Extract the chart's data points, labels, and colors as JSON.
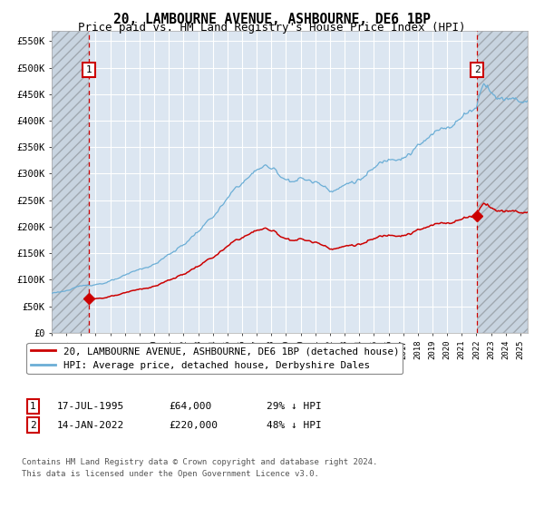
{
  "title": "20, LAMBOURNE AVENUE, ASHBOURNE, DE6 1BP",
  "subtitle": "Price paid vs. HM Land Registry's House Price Index (HPI)",
  "ylim": [
    0,
    570000
  ],
  "yticks": [
    0,
    50000,
    100000,
    150000,
    200000,
    250000,
    300000,
    350000,
    400000,
    450000,
    500000,
    550000
  ],
  "ytick_labels": [
    "£0",
    "£50K",
    "£100K",
    "£150K",
    "£200K",
    "£250K",
    "£300K",
    "£350K",
    "£400K",
    "£450K",
    "£500K",
    "£550K"
  ],
  "bg_color": "#dce6f1",
  "grid_color": "#ffffff",
  "hpi_color": "#6baed6",
  "price_color": "#cc0000",
  "sale1_year": 1995.54,
  "sale1_price": 64000,
  "sale2_year": 2022.04,
  "sale2_price": 220000,
  "xmin": 1993.0,
  "xmax": 2025.5,
  "legend_line1": "20, LAMBOURNE AVENUE, ASHBOURNE, DE6 1BP (detached house)",
  "legend_line2": "HPI: Average price, detached house, Derbyshire Dales",
  "ann1_num": "1",
  "ann1_text": "17-JUL-1995",
  "ann1_price": "£64,000",
  "ann1_hpi": "29% ↓ HPI",
  "ann2_num": "2",
  "ann2_text": "14-JAN-2022",
  "ann2_price": "£220,000",
  "ann2_hpi": "48% ↓ HPI",
  "footnote1": "Contains HM Land Registry data © Crown copyright and database right 2024.",
  "footnote2": "This data is licensed under the Open Government Licence v3.0."
}
